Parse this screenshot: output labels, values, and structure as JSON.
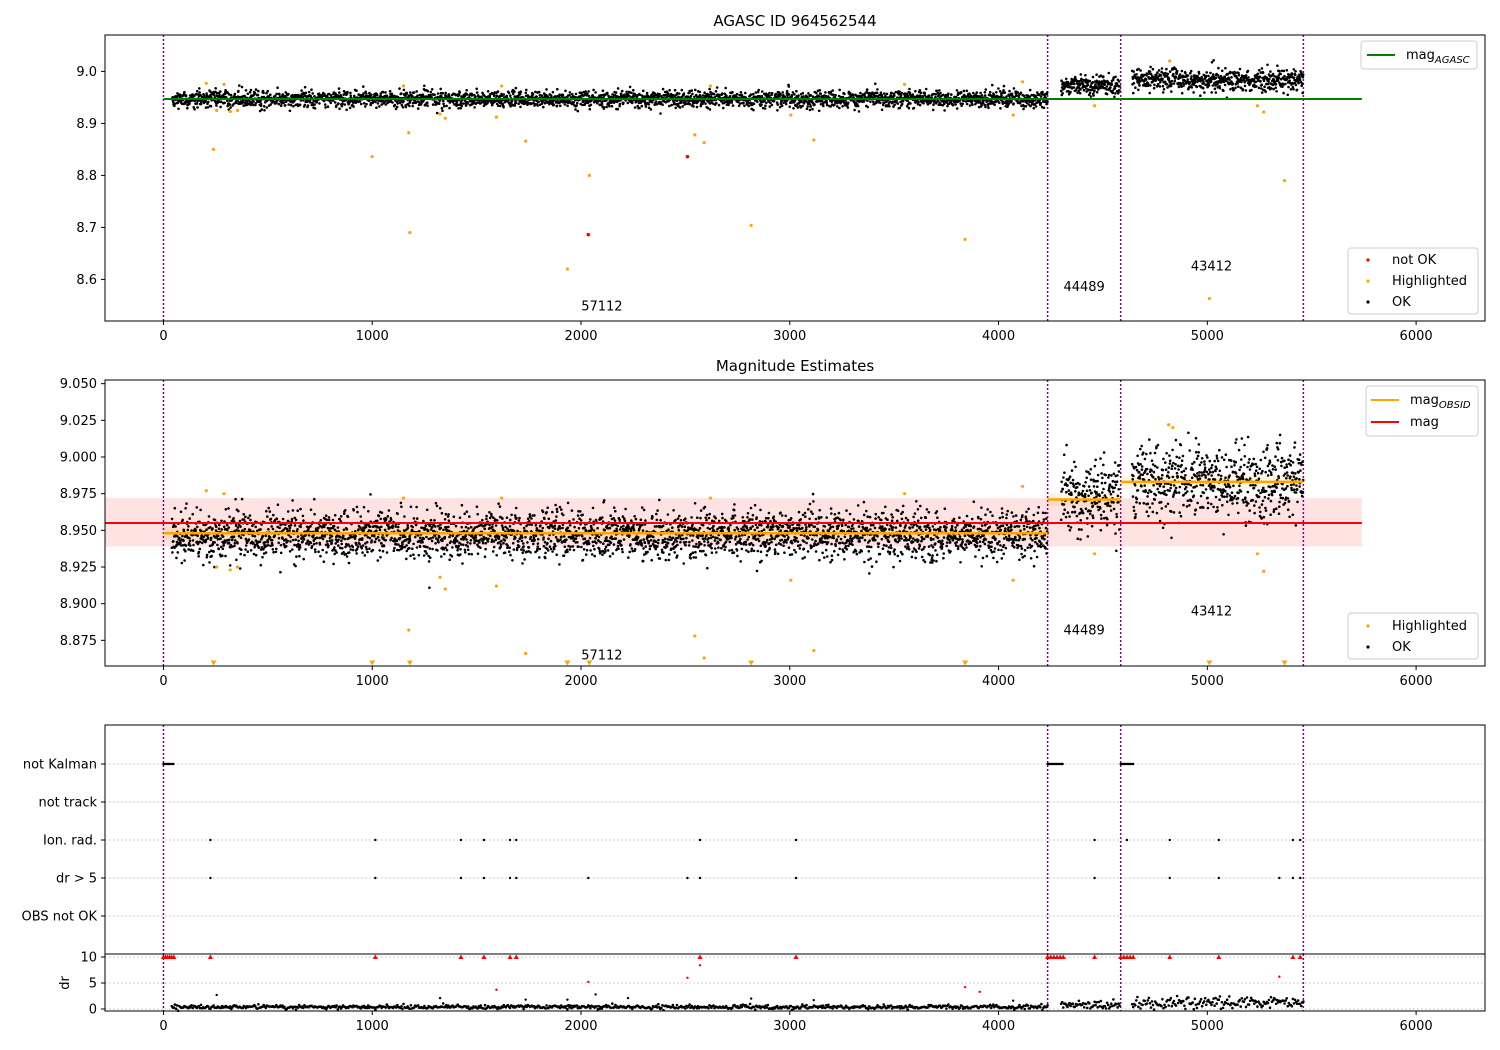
{
  "colors": {
    "green": "#008000",
    "orange": "#ffa500",
    "red": "#ff0000",
    "black": "#000000",
    "purple": "#800080",
    "band": "#ffcccc"
  },
  "chart_data": [
    {
      "type": "scatter",
      "title": "AGASC ID 964562544",
      "xlim": [
        -280,
        6330
      ],
      "ylim": [
        8.52,
        9.07
      ],
      "xticks": [
        "0",
        "1000",
        "2000",
        "3000",
        "4000",
        "5000",
        "6000"
      ],
      "yticks": [
        "8.6",
        "8.7",
        "8.8",
        "8.9",
        "9.0"
      ],
      "vlines": [
        0,
        4235,
        4585,
        5460
      ],
      "obsid_labels": [
        {
          "text": "57112",
          "x": 2100,
          "y": 8.54
        },
        {
          "text": "44489",
          "x": 4410,
          "y": 8.578
        },
        {
          "text": "43412",
          "x": 5020,
          "y": 8.617
        }
      ],
      "series": [
        {
          "name": "mag_AGASC",
          "type": "line",
          "x": [
            0,
            5740
          ],
          "y": [
            8.947,
            8.947
          ]
        },
        {
          "name": "not OK",
          "type": "scatter",
          "points": [
            [
              2510,
              8.836
            ],
            [
              2035,
              8.686
            ]
          ]
        },
        {
          "name": "Highlighted",
          "type": "scatter",
          "points": [
            [
              205,
              8.977
            ],
            [
              240,
              8.85
            ],
            [
              255,
              8.925
            ],
            [
              290,
              8.975
            ],
            [
              320,
              8.923
            ],
            [
              355,
              8.925
            ],
            [
              1000,
              8.836
            ],
            [
              1150,
              8.972
            ],
            [
              1175,
              8.882
            ],
            [
              1180,
              8.69
            ],
            [
              1325,
              8.918
            ],
            [
              1350,
              8.91
            ],
            [
              1595,
              8.912
            ],
            [
              1620,
              8.972
            ],
            [
              1735,
              8.866
            ],
            [
              1935,
              8.62
            ],
            [
              2040,
              8.8
            ],
            [
              2545,
              8.878
            ],
            [
              2590,
              8.863
            ],
            [
              2620,
              8.972
            ],
            [
              2815,
              8.704
            ],
            [
              3005,
              8.916
            ],
            [
              3115,
              8.868
            ],
            [
              3550,
              8.975
            ],
            [
              3840,
              8.677
            ],
            [
              4070,
              8.916
            ],
            [
              4115,
              8.98
            ],
            [
              4460,
              8.934
            ],
            [
              5010,
              8.563
            ],
            [
              5240,
              8.934
            ],
            [
              5270,
              8.922
            ],
            [
              5370,
              8.79
            ],
            [
              4820,
              9.02
            ]
          ]
        }
      ],
      "ok_segments": [
        {
          "x0": 40,
          "x1": 4235,
          "mean": 8.947,
          "sd": 0.008
        },
        {
          "x0": 4300,
          "x1": 4580,
          "mean": 8.972,
          "sd": 0.01
        },
        {
          "x0": 4640,
          "x1": 5460,
          "mean": 8.983,
          "sd": 0.011
        }
      ],
      "legend": {
        "position": "top-right",
        "entries": [
          "mag_AGASC"
        ]
      },
      "legend2": {
        "position": "bottom-right",
        "entries": [
          "not OK",
          "Highlighted",
          "OK"
        ]
      }
    },
    {
      "type": "scatter",
      "title": "Magnitude Estimates",
      "xlim": [
        -280,
        6330
      ],
      "ylim": [
        8.8575,
        9.0525
      ],
      "xticks": [
        "0",
        "1000",
        "2000",
        "3000",
        "4000",
        "5000",
        "6000"
      ],
      "yticks": [
        "8.875",
        "8.900",
        "8.925",
        "8.950",
        "8.975",
        "9.000",
        "9.025",
        "9.050"
      ],
      "vlines": [
        0,
        4235,
        4585,
        5460
      ],
      "band": [
        8.939,
        8.972
      ],
      "obsid_labels": [
        {
          "text": "57112",
          "x": 2100,
          "y": 8.862
        },
        {
          "text": "44489",
          "x": 4410,
          "y": 8.879
        },
        {
          "text": "43412",
          "x": 5020,
          "y": 8.892
        }
      ],
      "series": [
        {
          "name": "mag_OBSID",
          "type": "step",
          "segments": [
            [
              0,
              4235,
              8.948
            ],
            [
              4235,
              4585,
              8.971
            ],
            [
              4585,
              5460,
              8.983
            ]
          ]
        },
        {
          "name": "mag",
          "type": "line",
          "x": [
            -280,
            5740
          ],
          "y": [
            8.955,
            8.955
          ]
        },
        {
          "name": "Highlighted",
          "type": "scatter",
          "points": [
            [
              205,
              8.977
            ],
            [
              255,
              8.925
            ],
            [
              290,
              8.975
            ],
            [
              320,
              8.923
            ],
            [
              355,
              8.925
            ],
            [
              1150,
              8.972
            ],
            [
              1175,
              8.882
            ],
            [
              1325,
              8.918
            ],
            [
              1350,
              8.91
            ],
            [
              1595,
              8.912
            ],
            [
              1620,
              8.972
            ],
            [
              1735,
              8.866
            ],
            [
              2545,
              8.878
            ],
            [
              2590,
              8.863
            ],
            [
              2620,
              8.972
            ],
            [
              3005,
              8.916
            ],
            [
              3115,
              8.868
            ],
            [
              3550,
              8.975
            ],
            [
              4070,
              8.916
            ],
            [
              4115,
              8.98
            ],
            [
              4460,
              8.934
            ],
            [
              4815,
              9.022
            ],
            [
              4835,
              9.02
            ],
            [
              5240,
              8.934
            ],
            [
              5270,
              8.922
            ]
          ]
        },
        {
          "name": "Highlighted-clipped",
          "type": "scatter",
          "x": [
            240,
            1000,
            1180,
            1935,
            2040,
            2815,
            3840,
            5010,
            5370
          ]
        }
      ],
      "ok_segments": [
        {
          "x0": 40,
          "x1": 4235,
          "mean": 8.947,
          "sd": 0.008
        },
        {
          "x0": 4300,
          "x1": 4580,
          "mean": 8.972,
          "sd": 0.012
        },
        {
          "x0": 4640,
          "x1": 5460,
          "mean": 8.983,
          "sd": 0.013
        }
      ],
      "legend": {
        "position": "top-right",
        "entries": [
          "mag_OBSID",
          "mag"
        ]
      },
      "legend2": {
        "position": "bottom-right",
        "entries": [
          "Highlighted",
          "OK"
        ]
      }
    },
    {
      "type": "scatter",
      "title": "",
      "xlim": [
        -280,
        6330
      ],
      "categories": [
        "not Kalman",
        "not track",
        "Ion. rad.",
        "dr > 5",
        "OBS not OK"
      ],
      "vlines": [
        0,
        4235,
        4585,
        5460
      ],
      "flags": {
        "not Kalman": [
          [
            0,
            50
          ],
          [
            4235,
            4310
          ],
          [
            4585,
            4645
          ]
        ],
        "not track": [],
        "Ion. rad.": [
          225,
          1015,
          1425,
          1535,
          1660,
          1690,
          2570,
          3030,
          4460,
          4615,
          4820,
          5055,
          5410,
          5445
        ],
        "dr > 5": [
          225,
          1015,
          1425,
          1535,
          1660,
          1690,
          2035,
          2510,
          2570,
          3030,
          4460,
          4820,
          5055,
          5345,
          5410,
          5445
        ],
        "OBS not OK": []
      }
    },
    {
      "type": "scatter",
      "title": "",
      "xlim": [
        -280,
        6330
      ],
      "ylim": [
        -0.5,
        10.5
      ],
      "ylabel": "dr",
      "yticks": [
        "0",
        "5",
        "10"
      ],
      "xticks": [
        "0",
        "1000",
        "2000",
        "3000",
        "4000",
        "5000",
        "6000"
      ],
      "vlines": [
        0,
        4235,
        4585,
        5460
      ],
      "clipped_red_x": [
        0,
        10,
        20,
        30,
        40,
        50,
        225,
        1015,
        1425,
        1535,
        1660,
        1690,
        2570,
        3030,
        4235,
        4250,
        4265,
        4280,
        4295,
        4310,
        4460,
        4585,
        4600,
        4615,
        4630,
        4645,
        4820,
        5055,
        5410,
        5445
      ],
      "red_points": [
        [
          2510,
          6.0
        ],
        [
          2035,
          5.2
        ],
        [
          2570,
          8.4
        ],
        [
          1595,
          3.7
        ],
        [
          5345,
          6.2
        ],
        [
          3840,
          4.2
        ],
        [
          3910,
          3.3
        ]
      ],
      "outlier_points": [
        [
          255,
          2.7
        ],
        [
          1325,
          2.1
        ],
        [
          1735,
          1.8
        ],
        [
          1935,
          1.8
        ],
        [
          2070,
          2.8
        ],
        [
          2225,
          2.1
        ],
        [
          2815,
          2.0
        ],
        [
          3115,
          1.7
        ],
        [
          4070,
          1.6
        ]
      ],
      "ok_segments": [
        {
          "x0": 40,
          "x1": 4235,
          "mean": 0.4,
          "sd": 0.2
        },
        {
          "x0": 4300,
          "x1": 4580,
          "mean": 0.8,
          "sd": 0.4
        },
        {
          "x0": 4640,
          "x1": 5460,
          "mean": 1.2,
          "sd": 0.6
        }
      ]
    }
  ],
  "legend_labels": {
    "mag_agasc_main": "mag",
    "mag_agasc_sub": "AGASC",
    "not_ok": "not OK",
    "highlighted": "Highlighted",
    "ok": "OK",
    "mag_obsid_main": "mag",
    "mag_obsid_sub": "OBSID",
    "mag": "mag"
  }
}
